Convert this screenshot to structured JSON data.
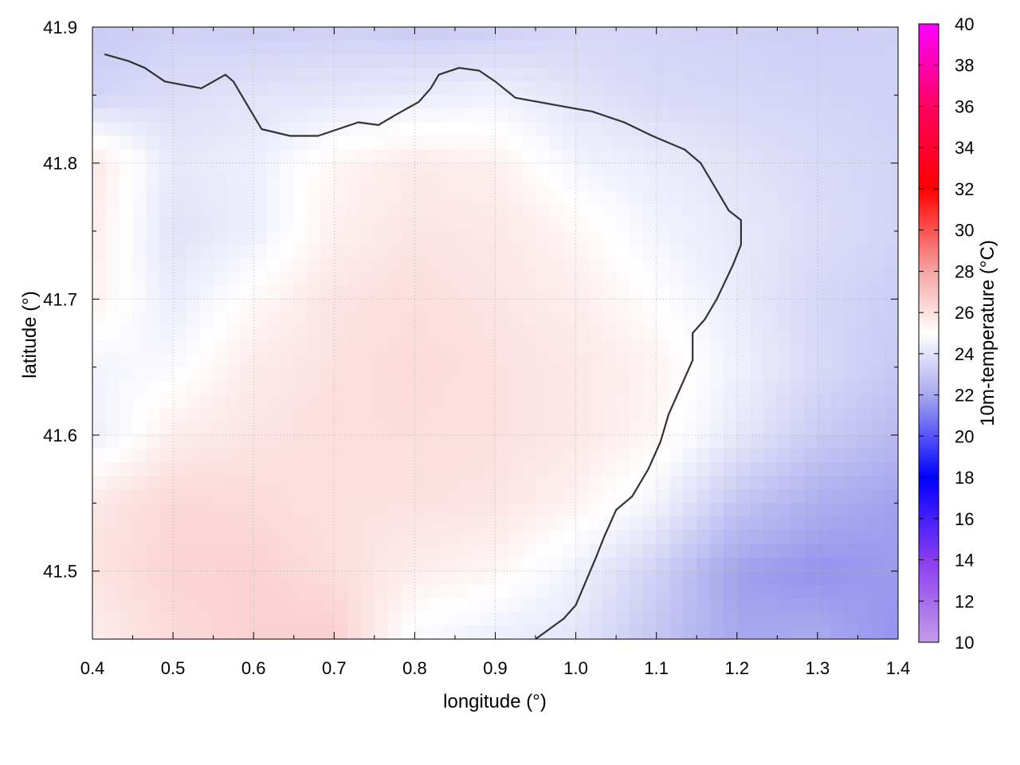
{
  "chart_data": {
    "type": "heatmap",
    "xlabel": "longitude (°)",
    "ylabel": "latitude (°)",
    "colorbar_label": "10m-temperature (°C)",
    "xlim": [
      0.4,
      1.4
    ],
    "ylim": [
      41.45,
      41.9
    ],
    "x_ticks": [
      "0.4",
      "0.5",
      "0.6",
      "0.7",
      "0.8",
      "0.9",
      "1.0",
      "1.1",
      "1.2",
      "1.3",
      "1.4"
    ],
    "y_ticks": [
      "41.5",
      "41.6",
      "41.7",
      "41.8",
      "41.9"
    ],
    "colorbar_ticks": [
      "10",
      "12",
      "14",
      "16",
      "18",
      "20",
      "22",
      "24",
      "26",
      "28",
      "30",
      "32",
      "34",
      "36",
      "38",
      "40"
    ],
    "colorbar_range": [
      10,
      40
    ],
    "grid": true,
    "colormap": [
      {
        "value": 10,
        "color": "#c39ce8"
      },
      {
        "value": 14,
        "color": "#8a3cf0"
      },
      {
        "value": 18,
        "color": "#0000ff"
      },
      {
        "value": 22,
        "color": "#a8a8ee"
      },
      {
        "value": 25,
        "color": "#ffffff"
      },
      {
        "value": 28,
        "color": "#f6a4a4"
      },
      {
        "value": 32,
        "color": "#ff0000"
      },
      {
        "value": 36,
        "color": "#ff0060"
      },
      {
        "value": 40,
        "color": "#ff00ff"
      }
    ],
    "field_grid": {
      "x": [
        0.4,
        0.5,
        0.6,
        0.7,
        0.8,
        0.9,
        1.0,
        1.1,
        1.2,
        1.3,
        1.4
      ],
      "y": [
        41.9,
        41.85,
        41.8,
        41.75,
        41.7,
        41.65,
        41.6,
        41.55,
        41.5,
        41.45
      ],
      "values": [
        [
          23.2,
          23.4,
          23.3,
          23.4,
          23.2,
          23.3,
          23.6,
          23.5,
          23.4,
          23.3,
          23.4
        ],
        [
          23.5,
          23.8,
          24.0,
          24.1,
          24.3,
          24.5,
          24.0,
          23.7,
          23.6,
          23.5,
          23.4
        ],
        [
          25.8,
          24.2,
          24.4,
          25.3,
          25.7,
          25.5,
          24.6,
          24.3,
          24.0,
          23.7,
          23.5
        ],
        [
          25.6,
          24.0,
          24.4,
          25.5,
          25.9,
          25.8,
          25.3,
          24.6,
          24.2,
          23.8,
          23.5
        ],
        [
          25.5,
          24.3,
          25.2,
          25.9,
          26.1,
          25.9,
          25.6,
          25.0,
          24.3,
          23.6,
          23.3
        ],
        [
          24.6,
          24.8,
          25.7,
          26.0,
          26.2,
          26.0,
          25.8,
          25.4,
          24.5,
          23.7,
          23.1
        ],
        [
          24.4,
          25.6,
          25.9,
          26.1,
          26.1,
          26.0,
          25.8,
          25.3,
          24.2,
          23.2,
          22.6
        ],
        [
          25.8,
          26.3,
          26.2,
          26.0,
          26.0,
          25.9,
          25.4,
          24.6,
          23.0,
          22.2,
          21.8
        ],
        [
          25.9,
          26.4,
          26.5,
          26.1,
          25.6,
          25.3,
          24.5,
          23.4,
          21.8,
          21.5,
          21.7
        ],
        [
          25.6,
          26.2,
          26.5,
          26.6,
          24.8,
          24.4,
          24.1,
          23.0,
          22.0,
          22.1,
          21.5
        ]
      ]
    },
    "contours": [
      [
        [
          0.415,
          41.88
        ],
        [
          0.445,
          41.875
        ],
        [
          0.465,
          41.87
        ],
        [
          0.49,
          41.86
        ],
        [
          0.535,
          41.855
        ],
        [
          0.55,
          41.86
        ],
        [
          0.565,
          41.865
        ],
        [
          0.575,
          41.86
        ],
        [
          0.595,
          41.84
        ],
        [
          0.61,
          41.825
        ],
        [
          0.645,
          41.82
        ],
        [
          0.68,
          41.82
        ],
        [
          0.705,
          41.825
        ],
        [
          0.73,
          41.83
        ],
        [
          0.755,
          41.828
        ],
        [
          0.775,
          41.835
        ],
        [
          0.805,
          41.845
        ],
        [
          0.82,
          41.855
        ],
        [
          0.83,
          41.865
        ],
        [
          0.855,
          41.87
        ],
        [
          0.88,
          41.868
        ],
        [
          0.9,
          41.86
        ],
        [
          0.925,
          41.848
        ],
        [
          1.0,
          41.84
        ],
        [
          1.02,
          41.838
        ],
        [
          1.06,
          41.83
        ],
        [
          1.095,
          41.82
        ],
        [
          1.115,
          41.815
        ],
        [
          1.135,
          41.81
        ],
        [
          1.155,
          41.8
        ],
        [
          1.17,
          41.785
        ],
        [
          1.19,
          41.765
        ],
        [
          1.205,
          41.758
        ],
        [
          1.205,
          41.74
        ],
        [
          1.195,
          41.725
        ],
        [
          1.175,
          41.7
        ],
        [
          1.16,
          41.685
        ],
        [
          1.145,
          41.675
        ],
        [
          1.145,
          41.655
        ],
        [
          1.13,
          41.635
        ],
        [
          1.115,
          41.615
        ],
        [
          1.105,
          41.595
        ],
        [
          1.09,
          41.575
        ],
        [
          1.07,
          41.555
        ],
        [
          1.05,
          41.545
        ],
        [
          1.035,
          41.525
        ],
        [
          1.025,
          41.51
        ],
        [
          1.0,
          41.475
        ],
        [
          0.985,
          41.465
        ],
        [
          0.95,
          41.45
        ]
      ]
    ]
  }
}
